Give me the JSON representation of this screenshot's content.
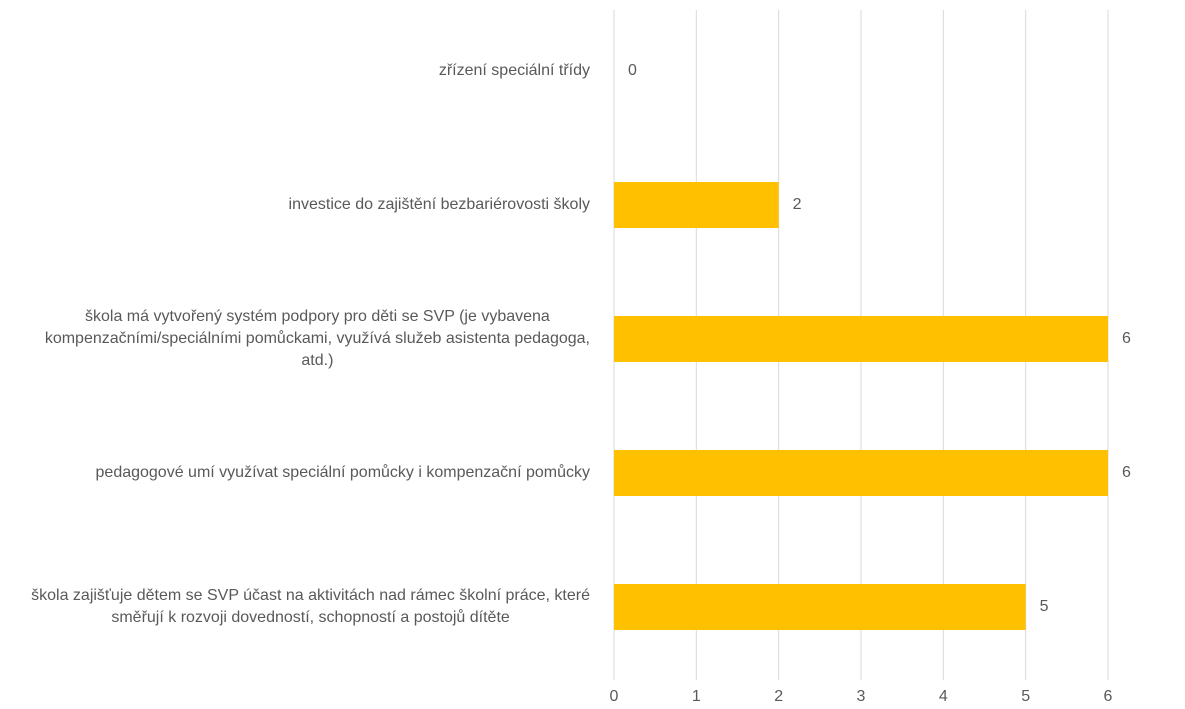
{
  "chart_data": {
    "type": "barh",
    "categories": [
      "zřízení speciální třídy",
      "investice do zajištění bezbariérovosti školy",
      "škola má vytvořený systém podpory pro děti se SVP (je vybavena kompenzačními/speciálními pomůckami, využívá služeb asistenta pedagoga, atd.)",
      "pedagogové umí využívat speciální pomůcky i kompenzační pomůcky",
      "škola zajišťuje dětem se SVP účast na aktivitách nad rámec školní práce, které směřují k rozvoji dovedností, schopností a postojů dítěte"
    ],
    "values": [
      0,
      2,
      6,
      6,
      5
    ],
    "color": "#ffc000",
    "xlim": [
      0,
      6
    ],
    "xticks": [
      0,
      1,
      2,
      3,
      4,
      5,
      6
    ],
    "grid": true
  }
}
